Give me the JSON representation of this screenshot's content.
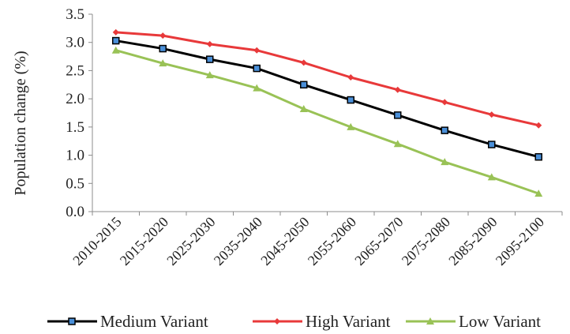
{
  "chart_data": {
    "type": "line",
    "title": "",
    "xlabel": "",
    "ylabel": "Population change  (%)",
    "ylim": [
      0,
      3.5
    ],
    "ystep": 0.5,
    "grid": false,
    "legend_position": "bottom",
    "categories": [
      "2010-2015",
      "2015-2020",
      "2025-2030",
      "2035-2040",
      "2045-2050",
      "2055-2060",
      "2065-2070",
      "2075-2080",
      "2085-2090",
      "2095-2100"
    ],
    "series": [
      {
        "name": "Medium Variant",
        "color": "#000000",
        "marker": "square",
        "marker_fill": "#4a8fd8",
        "values": [
          3.03,
          2.89,
          2.7,
          2.54,
          2.25,
          1.98,
          1.71,
          1.44,
          1.19,
          0.97
        ]
      },
      {
        "name": "High Variant",
        "color": "#e8393a",
        "marker": "diamond",
        "marker_fill": "#e8393a",
        "values": [
          3.18,
          3.12,
          2.97,
          2.86,
          2.64,
          2.38,
          2.16,
          1.94,
          1.72,
          1.53
        ]
      },
      {
        "name": "Low Variant",
        "color": "#99c256",
        "marker": "triangle",
        "marker_fill": "#99c256",
        "values": [
          2.86,
          2.63,
          2.42,
          2.19,
          1.82,
          1.5,
          1.2,
          0.88,
          0.61,
          0.32
        ]
      }
    ]
  }
}
